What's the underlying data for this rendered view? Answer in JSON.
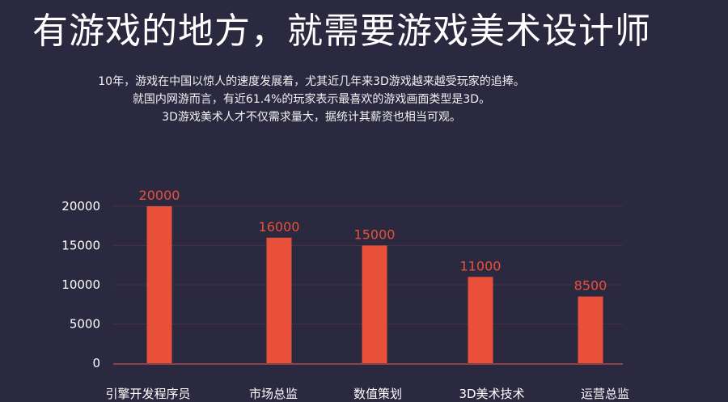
{
  "header": {
    "headline": "有游戏的地方，就需要游戏美术设计师"
  },
  "intro": {
    "lines": [
      "10年，游戏在中国以惊人的速度发展着，尤其近几年来3D游戏越来越受玩家的追捧。",
      "就国内网游而言，有近61.4%的玩家表示最喜欢的游戏画面类型是3D。",
      "3D游戏美术人才不仅需求量大，据统计其薪资也相当可观。"
    ]
  },
  "chart_data": {
    "type": "bar",
    "categories": [
      "引擎开发程序员",
      "市场总监",
      "数值策划",
      "3D美术技术",
      "运营总监"
    ],
    "values": [
      20000,
      16000,
      15000,
      11000,
      8500
    ],
    "data_labels": [
      "20000",
      "16000",
      "15000",
      "11000",
      "8500"
    ],
    "yticks": [
      0,
      5000,
      10000,
      15000,
      20000
    ],
    "ylim": [
      0,
      20000
    ],
    "grid": true,
    "colors": {
      "bar": "#e8503a",
      "data_label": "#e8503a",
      "grid": "#4a2e3e",
      "axis": "#b04a4a",
      "tick_label": "#ffffff"
    }
  }
}
